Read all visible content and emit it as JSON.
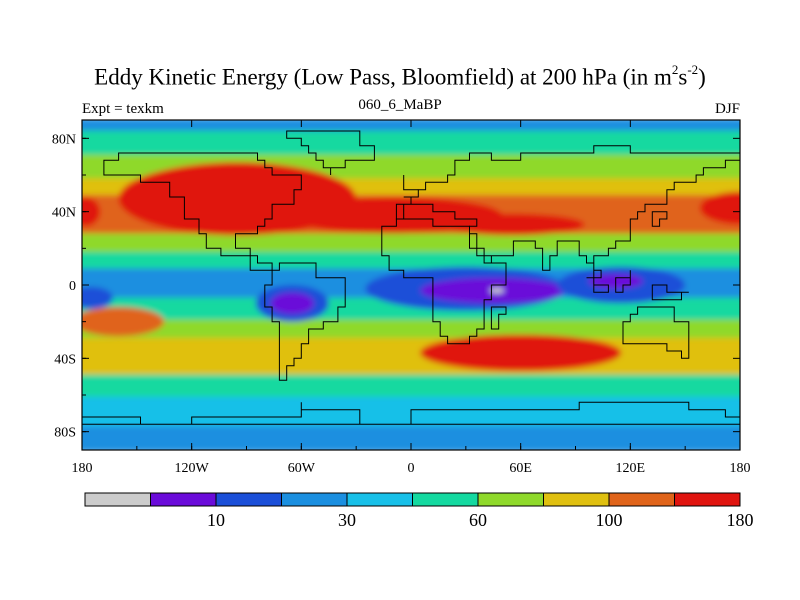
{
  "title_main": "Eddy Kinetic Energy (Low Pass, Bloomfield) at 200 hPa (in m",
  "title_sup1": "2",
  "title_mid": "s",
  "title_sup2": "-2",
  "title_end": ")",
  "subtitle_left": "Expt = texkm",
  "subtitle_center": "060_6_MaBP",
  "subtitle_right": "DJF",
  "chart_data": {
    "type": "heatmap",
    "x_ticks": [
      "180",
      "120W",
      "60W",
      "0",
      "60E",
      "120E",
      "180"
    ],
    "y_ticks": [
      "80N",
      "40N",
      "0",
      "40S",
      "80S"
    ],
    "colorbar": {
      "colors": [
        "#cccccc",
        "#6a0bd9",
        "#1b4fd8",
        "#1b8fe0",
        "#18c0e8",
        "#14d9a0",
        "#8fd92b",
        "#e0c010",
        "#e0641a",
        "#e0140f"
      ],
      "labels": [
        {
          "text": "10",
          "bin_edge": 2
        },
        {
          "text": "30",
          "bin_edge": 4
        },
        {
          "text": "60",
          "bin_edge": 6
        },
        {
          "text": "100",
          "bin_edge": 8
        },
        {
          "text": "180",
          "bin_edge": 10
        }
      ]
    },
    "bands": [
      {
        "lat_from": 90,
        "lat_to": 83,
        "level": 3
      },
      {
        "lat_from": 83,
        "lat_to": 70,
        "level": 5
      },
      {
        "lat_from": 70,
        "lat_to": 57,
        "level": 6
      },
      {
        "lat_from": 57,
        "lat_to": 48,
        "level": 7
      },
      {
        "lat_from": 48,
        "lat_to": 27,
        "level": 8
      },
      {
        "lat_from": 27,
        "lat_to": 17,
        "level": 6
      },
      {
        "lat_from": 17,
        "lat_to": 8,
        "level": 5
      },
      {
        "lat_from": 8,
        "lat_to": -8,
        "level": 3
      },
      {
        "lat_from": -8,
        "lat_to": -20,
        "level": 5
      },
      {
        "lat_from": -20,
        "lat_to": -30,
        "level": 6
      },
      {
        "lat_from": -30,
        "lat_to": -50,
        "level": 7
      },
      {
        "lat_from": -50,
        "lat_to": -62,
        "level": 5
      },
      {
        "lat_from": -62,
        "lat_to": -78,
        "level": 4
      },
      {
        "lat_from": -78,
        "lat_to": -90,
        "level": 3
      }
    ],
    "patches": [
      {
        "lon": -95,
        "lat": 47,
        "rlon": 65,
        "rlat": 20,
        "level": 9
      },
      {
        "lon": -10,
        "lat": 38,
        "rlon": 60,
        "rlat": 10,
        "level": 9
      },
      {
        "lon": 55,
        "lat": 33,
        "rlon": 40,
        "rlat": 6,
        "level": 9
      },
      {
        "lon": 180,
        "lat": 42,
        "rlon": 22,
        "rlat": 9,
        "level": 9
      },
      {
        "lon": -178,
        "lat": 40,
        "rlon": 8,
        "rlat": 8,
        "level": 9
      },
      {
        "lon": 60,
        "lat": -37,
        "rlon": 55,
        "rlat": 10,
        "level": 9
      },
      {
        "lon": -160,
        "lat": -20,
        "rlon": 25,
        "rlat": 8,
        "level": 8
      },
      {
        "lon": 30,
        "lat": -2,
        "rlon": 55,
        "rlat": 12,
        "level": 2
      },
      {
        "lon": 45,
        "lat": -3,
        "rlon": 40,
        "rlat": 7,
        "level": 1
      },
      {
        "lon": 115,
        "lat": 0,
        "rlon": 35,
        "rlat": 10,
        "level": 2
      },
      {
        "lon": 112,
        "lat": 2,
        "rlon": 15,
        "rlat": 4,
        "level": 1
      },
      {
        "lon": -65,
        "lat": -10,
        "rlon": 20,
        "rlat": 10,
        "level": 2
      },
      {
        "lon": -65,
        "lat": -10,
        "rlon": 12,
        "rlat": 6,
        "level": 1
      },
      {
        "lon": -175,
        "lat": -7,
        "rlon": 12,
        "rlat": 6,
        "level": 2
      },
      {
        "lon": 47,
        "lat": -3,
        "rlon": 4,
        "rlat": 1.5,
        "level": 0
      }
    ]
  }
}
